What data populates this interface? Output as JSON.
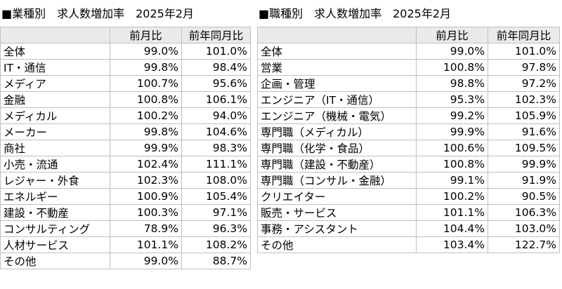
{
  "left": {
    "title": "■業種別　求人数増加率　2025年2月",
    "headers": [
      "",
      "前月比",
      "前年同月比"
    ],
    "rows": [
      [
        "全体",
        "99.0%",
        "101.0%"
      ],
      [
        "IT・通信",
        "99.8%",
        "98.4%"
      ],
      [
        "メディア",
        "100.7%",
        "95.6%"
      ],
      [
        "金融",
        "100.8%",
        "106.1%"
      ],
      [
        "メディカル",
        "100.2%",
        "94.0%"
      ],
      [
        "メーカー",
        "99.8%",
        "104.6%"
      ],
      [
        "商社",
        "99.9%",
        "98.3%"
      ],
      [
        "小売・流通",
        "102.4%",
        "111.1%"
      ],
      [
        "レジャー・外食",
        "102.3%",
        "108.0%"
      ],
      [
        "エネルギー",
        "100.9%",
        "105.4%"
      ],
      [
        "建設・不動産",
        "100.3%",
        "97.1%"
      ],
      [
        "コンサルティング",
        "78.9%",
        "96.3%"
      ],
      [
        "人材サービス",
        "101.1%",
        "108.2%"
      ],
      [
        "その他",
        "99.0%",
        "88.7%"
      ]
    ]
  },
  "right": {
    "title": "■職種別　求人数増加率　2025年2月",
    "headers": [
      "",
      "前月比",
      "前年同月比"
    ],
    "rows": [
      [
        "全体",
        "99.0%",
        "101.0%"
      ],
      [
        "営業",
        "100.8%",
        "97.8%"
      ],
      [
        "企画・管理",
        "98.8%",
        "97.2%"
      ],
      [
        "エンジニア（IT・通信）",
        "95.3%",
        "102.3%"
      ],
      [
        "エンジニア（機械・電気）",
        "99.2%",
        "105.9%"
      ],
      [
        "専門職（メディカル）",
        "99.9%",
        "91.6%"
      ],
      [
        "専門職（化学・食品）",
        "100.6%",
        "109.5%"
      ],
      [
        "専門職（建設・不動産）",
        "100.8%",
        "99.9%"
      ],
      [
        "専門職（コンサル・金融）",
        "99.1%",
        "91.9%"
      ],
      [
        "クリエイター",
        "100.2%",
        "90.5%"
      ],
      [
        "販売・サービス",
        "101.1%",
        "106.3%"
      ],
      [
        "事務・アシスタント",
        "104.4%",
        "103.0%"
      ],
      [
        "その他",
        "103.4%",
        "122.7%"
      ]
    ]
  }
}
